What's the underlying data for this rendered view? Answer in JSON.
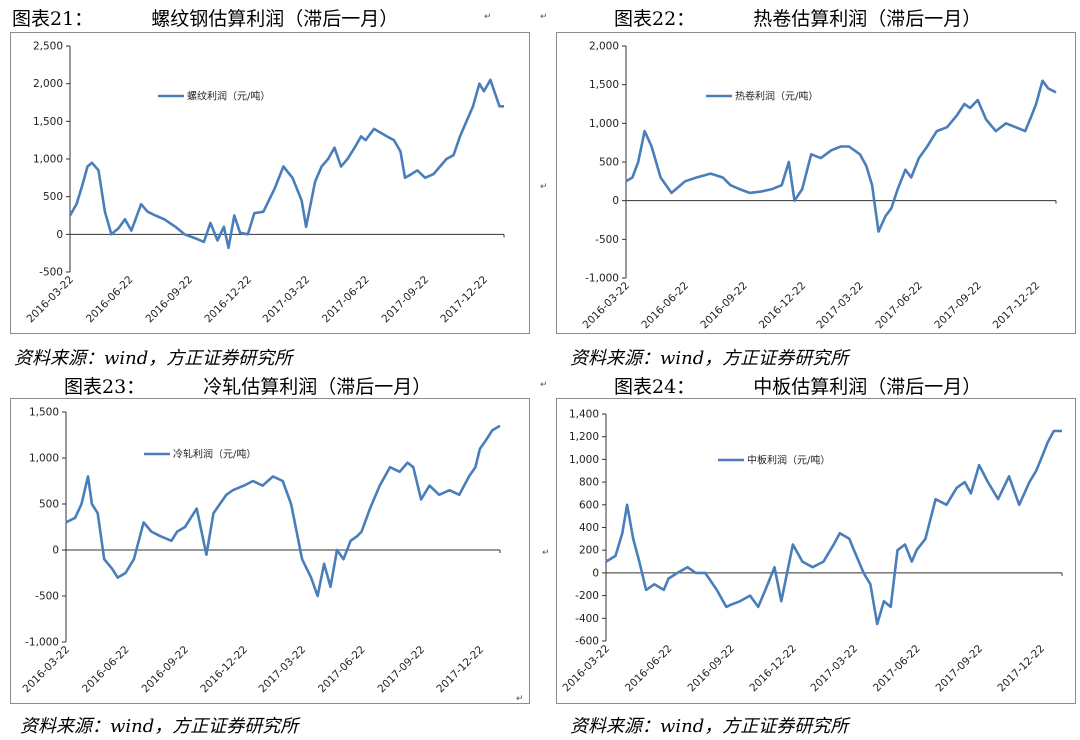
{
  "figures": [
    {
      "number": "图表21：",
      "title": "螺纹钢估算利润（滞后一月）",
      "source": "资料来源：wind，方正证券研究所"
    },
    {
      "number": "图表22：",
      "title": "热卷估算利润（滞后一月）",
      "source": "资料来源：wind，方正证券研究所"
    },
    {
      "number": "图表23：",
      "title": "冷轧估算利润（滞后一月）",
      "source": "资料来源：wind，方正证券研究所"
    },
    {
      "number": "图表24：",
      "title": "中板估算利润（滞后一月）",
      "source": "资料来源：wind，方正证券研究所"
    }
  ],
  "chart_data": [
    {
      "type": "line",
      "series_color": "#4a7ebb",
      "legend": "螺纹利润（元/吨）",
      "legend_placement": "upper-left",
      "ylim": [
        -500,
        2500
      ],
      "yticks": [
        -500,
        0,
        500,
        1000,
        1500,
        2000,
        2500
      ],
      "ytick_labels": [
        "-500",
        "0",
        "500",
        "1,000",
        "1,500",
        "2,000",
        "2,500"
      ],
      "xlim": [
        "2016-03-22",
        "2018-01-22"
      ],
      "xtick_labels": [
        "2016-03-22",
        "2016-06-22",
        "2016-09-22",
        "2016-12-22",
        "2017-03-22",
        "2017-06-22",
        "2017-09-22",
        "2017-12-22"
      ],
      "x": [
        "2016-03-22",
        "2016-04-01",
        "2016-04-10",
        "2016-04-18",
        "2016-04-25",
        "2016-05-05",
        "2016-05-15",
        "2016-05-25",
        "2016-06-05",
        "2016-06-15",
        "2016-06-25",
        "2016-07-10",
        "2016-07-20",
        "2016-08-01",
        "2016-08-15",
        "2016-09-01",
        "2016-09-15",
        "2016-10-01",
        "2016-10-15",
        "2016-10-25",
        "2016-11-05",
        "2016-11-15",
        "2016-11-22",
        "2016-12-01",
        "2016-12-10",
        "2016-12-22",
        "2017-01-01",
        "2017-01-15",
        "2017-02-01",
        "2017-02-15",
        "2017-03-01",
        "2017-03-15",
        "2017-03-22",
        "2017-04-05",
        "2017-04-15",
        "2017-04-25",
        "2017-05-05",
        "2017-05-15",
        "2017-05-25",
        "2017-06-05",
        "2017-06-15",
        "2017-06-22",
        "2017-07-05",
        "2017-07-15",
        "2017-07-25",
        "2017-08-05",
        "2017-08-15",
        "2017-08-22",
        "2017-09-01",
        "2017-09-10",
        "2017-09-22",
        "2017-10-05",
        "2017-10-15",
        "2017-10-25",
        "2017-11-05",
        "2017-11-15",
        "2017-11-25",
        "2017-12-05",
        "2017-12-15",
        "2017-12-22",
        "2018-01-01",
        "2018-01-15",
        "2018-01-22"
      ],
      "values": [
        250,
        400,
        650,
        900,
        950,
        850,
        300,
        0,
        80,
        200,
        50,
        400,
        300,
        250,
        200,
        100,
        0,
        -50,
        -100,
        150,
        -80,
        100,
        -180,
        250,
        20,
        0,
        280,
        300,
        600,
        900,
        750,
        450,
        100,
        700,
        900,
        1000,
        1150,
        900,
        1000,
        1150,
        1300,
        1250,
        1400,
        1350,
        1300,
        1250,
        1100,
        750,
        800,
        850,
        750,
        800,
        900,
        1000,
        1050,
        1300,
        1500,
        1700,
        2000,
        1900,
        2050,
        1700,
        1700
      ]
    },
    {
      "type": "line",
      "series_color": "#4a7ebb",
      "legend": "热卷利润（元/吨）",
      "legend_placement": "upper-left",
      "ylim": [
        -1000,
        2000
      ],
      "yticks": [
        -1000,
        -500,
        0,
        500,
        1000,
        1500,
        2000
      ],
      "ytick_labels": [
        "-1,000",
        "-500",
        "0",
        "500",
        "1,000",
        "1,500",
        "2,000"
      ],
      "xlim": [
        "2016-03-22",
        "2018-01-22"
      ],
      "xtick_labels": [
        "2016-03-22",
        "2016-06-22",
        "2016-09-22",
        "2016-12-22",
        "2017-03-22",
        "2017-06-22",
        "2017-09-22",
        "2017-12-22"
      ],
      "x": [
        "2016-03-22",
        "2016-04-01",
        "2016-04-10",
        "2016-04-20",
        "2016-05-01",
        "2016-05-15",
        "2016-06-01",
        "2016-06-15",
        "2016-06-22",
        "2016-07-10",
        "2016-08-01",
        "2016-08-20",
        "2016-09-01",
        "2016-09-15",
        "2016-10-01",
        "2016-10-20",
        "2016-11-05",
        "2016-11-20",
        "2016-12-01",
        "2016-12-10",
        "2016-12-22",
        "2017-01-05",
        "2017-01-20",
        "2017-02-05",
        "2017-02-20",
        "2017-03-05",
        "2017-03-22",
        "2017-04-01",
        "2017-04-10",
        "2017-04-20",
        "2017-05-01",
        "2017-05-10",
        "2017-05-20",
        "2017-06-01",
        "2017-06-10",
        "2017-06-22",
        "2017-07-05",
        "2017-07-20",
        "2017-08-05",
        "2017-08-20",
        "2017-09-01",
        "2017-09-10",
        "2017-09-22",
        "2017-10-05",
        "2017-10-20",
        "2017-11-05",
        "2017-11-20",
        "2017-12-05",
        "2017-12-15",
        "2017-12-22",
        "2018-01-01",
        "2018-01-10",
        "2018-01-22"
      ],
      "values": [
        250,
        300,
        500,
        900,
        700,
        300,
        100,
        200,
        250,
        300,
        350,
        300,
        200,
        150,
        100,
        120,
        150,
        200,
        500,
        0,
        150,
        600,
        550,
        650,
        700,
        700,
        600,
        450,
        200,
        -400,
        -200,
        -100,
        150,
        400,
        300,
        550,
        700,
        900,
        950,
        1100,
        1250,
        1200,
        1300,
        1050,
        900,
        1000,
        950,
        900,
        1100,
        1250,
        1550,
        1450,
        1400
      ]
    },
    {
      "type": "line",
      "series_color": "#4a7ebb",
      "legend": "冷轧利润（元/吨）",
      "legend_placement": "upper-left",
      "ylim": [
        -1000,
        1500
      ],
      "yticks": [
        -1000,
        -500,
        0,
        500,
        1000,
        1500
      ],
      "ytick_labels": [
        "-1,000",
        "-500",
        "0",
        "500",
        "1,000",
        "1,500"
      ],
      "xlim": [
        "2016-03-22",
        "2018-01-22"
      ],
      "xtick_labels": [
        "2016-03-22",
        "2016-06-22",
        "2016-09-22",
        "2016-12-22",
        "2017-03-22",
        "2017-06-22",
        "2017-09-22",
        "2017-12-22"
      ],
      "x": [
        "2016-03-22",
        "2016-04-05",
        "2016-04-15",
        "2016-04-25",
        "2016-05-01",
        "2016-05-10",
        "2016-05-20",
        "2016-06-01",
        "2016-06-10",
        "2016-06-22",
        "2016-07-05",
        "2016-07-20",
        "2016-08-01",
        "2016-08-15",
        "2016-09-01",
        "2016-09-10",
        "2016-09-22",
        "2016-10-10",
        "2016-10-25",
        "2016-11-05",
        "2016-11-15",
        "2016-11-25",
        "2016-12-05",
        "2016-12-22",
        "2017-01-05",
        "2017-01-20",
        "2017-02-05",
        "2017-02-20",
        "2017-03-05",
        "2017-03-22",
        "2017-04-05",
        "2017-04-15",
        "2017-04-25",
        "2017-05-05",
        "2017-05-15",
        "2017-05-25",
        "2017-06-05",
        "2017-06-15",
        "2017-06-22",
        "2017-07-05",
        "2017-07-20",
        "2017-08-05",
        "2017-08-20",
        "2017-09-01",
        "2017-09-10",
        "2017-09-22",
        "2017-10-05",
        "2017-10-20",
        "2017-11-05",
        "2017-11-20",
        "2017-12-05",
        "2017-12-15",
        "2017-12-22",
        "2018-01-01",
        "2018-01-10",
        "2018-01-22"
      ],
      "values": [
        300,
        350,
        500,
        800,
        500,
        400,
        -100,
        -200,
        -300,
        -250,
        -100,
        300,
        200,
        150,
        100,
        200,
        250,
        450,
        -50,
        400,
        500,
        600,
        650,
        700,
        750,
        700,
        800,
        750,
        500,
        -100,
        -300,
        -500,
        -150,
        -400,
        0,
        -100,
        100,
        150,
        200,
        450,
        700,
        900,
        850,
        950,
        900,
        550,
        700,
        600,
        650,
        600,
        800,
        900,
        1100,
        1200,
        1300,
        1350
      ]
    },
    {
      "type": "line",
      "series_color": "#4a7ebb",
      "legend": "中板利润（元/吨）",
      "legend_placement": "upper-left",
      "ylim": [
        -600,
        1400
      ],
      "yticks": [
        -600,
        -400,
        -200,
        0,
        200,
        400,
        600,
        800,
        1000,
        1200,
        1400
      ],
      "ytick_labels": [
        "-600",
        "-400",
        "-200",
        "0",
        "200",
        "400",
        "600",
        "800",
        "1,000",
        "1,200",
        "1,400"
      ],
      "xlim": [
        "2016-03-22",
        "2018-01-22"
      ],
      "xtick_labels": [
        "2016-03-22",
        "2016-06-22",
        "2016-09-22",
        "2016-12-22",
        "2017-03-22",
        "2017-06-22",
        "2017-09-22",
        "2017-12-22"
      ],
      "x": [
        "2016-03-22",
        "2016-04-05",
        "2016-04-15",
        "2016-04-22",
        "2016-05-01",
        "2016-05-10",
        "2016-05-20",
        "2016-06-01",
        "2016-06-15",
        "2016-06-22",
        "2016-07-05",
        "2016-07-20",
        "2016-08-01",
        "2016-08-15",
        "2016-09-01",
        "2016-09-15",
        "2016-09-22",
        "2016-10-05",
        "2016-10-20",
        "2016-11-01",
        "2016-11-15",
        "2016-11-25",
        "2016-12-05",
        "2016-12-22",
        "2017-01-05",
        "2017-01-20",
        "2017-02-05",
        "2017-02-20",
        "2017-03-01",
        "2017-03-15",
        "2017-03-22",
        "2017-04-05",
        "2017-04-15",
        "2017-04-25",
        "2017-05-05",
        "2017-05-15",
        "2017-05-25",
        "2017-06-05",
        "2017-06-15",
        "2017-06-22",
        "2017-07-05",
        "2017-07-20",
        "2017-08-05",
        "2017-08-20",
        "2017-09-01",
        "2017-09-10",
        "2017-09-22",
        "2017-10-05",
        "2017-10-20",
        "2017-11-05",
        "2017-11-20",
        "2017-12-05",
        "2017-12-15",
        "2017-12-22",
        "2018-01-01",
        "2018-01-10",
        "2018-01-22"
      ],
      "values": [
        100,
        150,
        350,
        600,
        300,
        100,
        -150,
        -100,
        -150,
        -50,
        0,
        50,
        0,
        0,
        -150,
        -300,
        -280,
        -250,
        -200,
        -300,
        -100,
        50,
        -250,
        250,
        100,
        50,
        100,
        250,
        350,
        300,
        200,
        0,
        -100,
        -450,
        -250,
        -300,
        200,
        250,
        100,
        200,
        300,
        650,
        600,
        750,
        800,
        700,
        950,
        800,
        650,
        850,
        600,
        800,
        900,
        1000,
        1150,
        1250,
        1250
      ]
    }
  ]
}
